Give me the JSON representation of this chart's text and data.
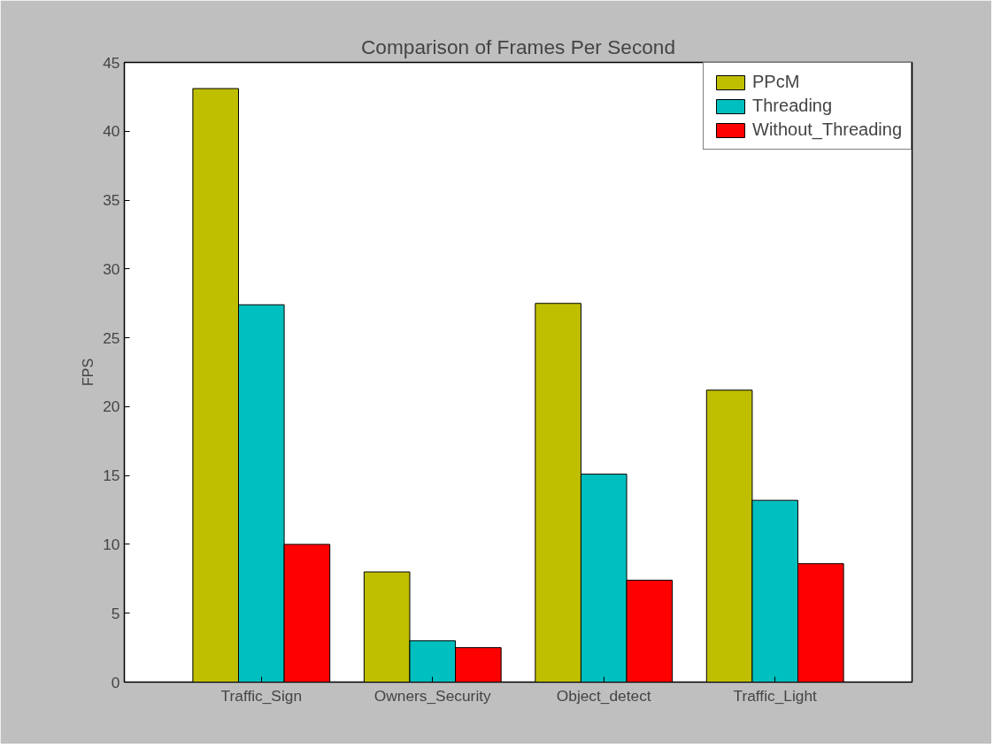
{
  "chart_data": {
    "type": "bar",
    "title": "Comparison of Frames Per Second",
    "ylabel": "FPS",
    "categories": [
      "Traffic_Sign",
      "Owners_Security",
      "Object_detect",
      "Traffic_Light"
    ],
    "series": [
      {
        "name": "PPcM",
        "color": "#bfbf00",
        "values": [
          43.1,
          8.0,
          27.5,
          21.2
        ]
      },
      {
        "name": "Threading",
        "color": "#00bfbf",
        "values": [
          27.4,
          3.0,
          15.1,
          13.2
        ]
      },
      {
        "name": "Without_Threading",
        "color": "#ff0000",
        "values": [
          10.0,
          2.5,
          7.4,
          8.6
        ]
      }
    ],
    "ylim": [
      0,
      45
    ],
    "yticks": [
      0,
      5,
      10,
      15,
      20,
      25,
      30,
      35,
      40,
      45
    ],
    "grid": false,
    "legend": "top right"
  }
}
